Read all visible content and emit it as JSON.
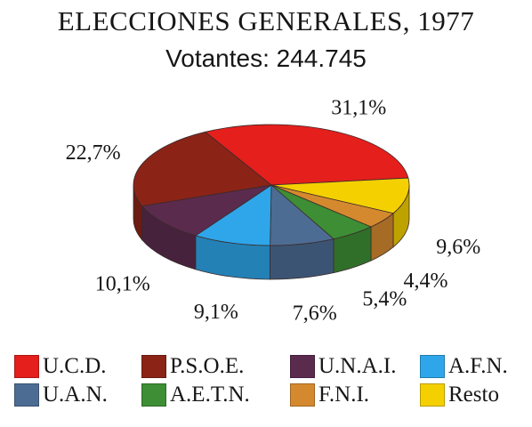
{
  "header": {
    "title": "ELECCIONES GENERALES, 1977",
    "subtitle": "Votantes: 244.745"
  },
  "chart_data": {
    "type": "pie",
    "style": "3d-exploded",
    "title": "ELECCIONES GENERALES, 1977",
    "subtitle": "Votantes: 244.745",
    "slices": [
      {
        "label": "U.C.D.",
        "value": 31.1,
        "text": "31,1%",
        "color": "#e41f1c"
      },
      {
        "label": "Resto",
        "value": 9.6,
        "text": "9,6%",
        "color": "#f4d000"
      },
      {
        "label": "F.N.I.",
        "value": 4.4,
        "text": "4,4%",
        "color": "#d5892e"
      },
      {
        "label": "A.E.T.N.",
        "value": 5.4,
        "text": "5,4%",
        "color": "#3d8e34"
      },
      {
        "label": "U.A.N.",
        "value": 7.6,
        "text": "7,6%",
        "color": "#4d6c93"
      },
      {
        "label": "A.F.N.",
        "value": 9.1,
        "text": "9,1%",
        "color": "#2ea6e9"
      },
      {
        "label": "U.N.A.I.",
        "value": 10.1,
        "text": "10,1%",
        "color": "#5b2b4e"
      },
      {
        "label": "P.S.O.E.",
        "value": 22.7,
        "text": "22,7%",
        "color": "#8b2417"
      }
    ],
    "legend": {
      "placement": "bottom",
      "order": [
        "U.C.D.",
        "P.S.O.E.",
        "U.N.A.I.",
        "A.F.N.",
        "U.A.N.",
        "A.E.T.N.",
        "F.N.I.",
        "Resto"
      ]
    }
  }
}
